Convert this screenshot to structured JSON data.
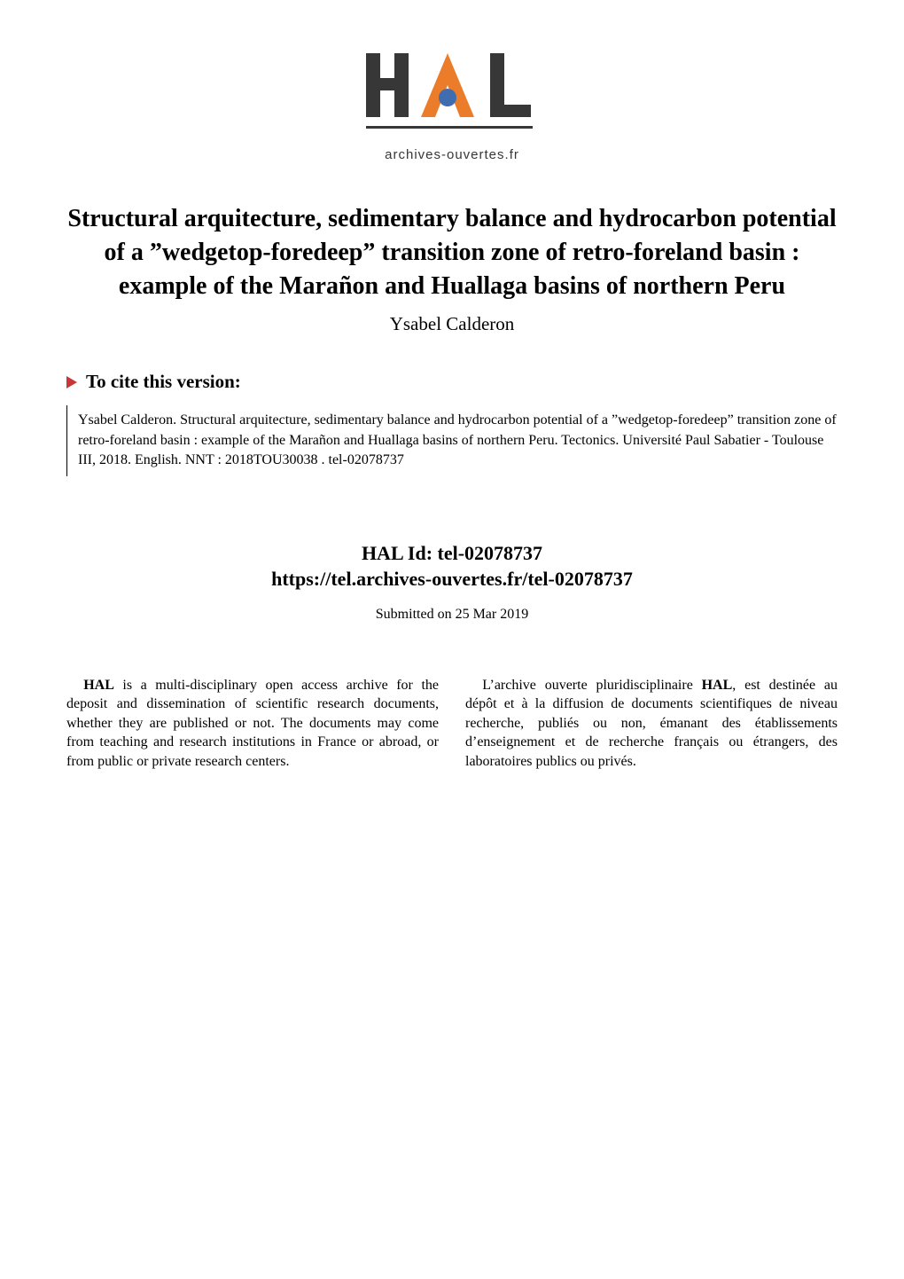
{
  "logo": {
    "text_main": "HAL",
    "caption": "archives-ouvertes.fr",
    "orange": "#eb7c2a",
    "blue": "#3f6db0",
    "dark": "#373737"
  },
  "title": "Structural arquitecture, sedimentary balance and hydrocarbon potential of a ”wedgetop-foredeep” transition zone of retro-foreland basin : example of the Marañon and Huallaga basins of northern Peru",
  "author": "Ysabel Calderon",
  "cite_heading": "To cite this version:",
  "citation": "Ysabel Calderon. Structural arquitecture, sedimentary balance and hydrocarbon potential of a ”wedgetop-foredeep” transition zone of retro-foreland basin : example of the Marañon and Huallaga basins of northern Peru. Tectonics. Université Paul Sabatier - Toulouse III, 2018. English. NNT : 2018TOU30038 . tel-02078737",
  "hal_id_label": "HAL Id: ",
  "hal_id": "tel-02078737",
  "hal_url": "https://tel.archives-ouvertes.fr/tel-02078737",
  "submitted": "Submitted on 25 Mar 2019",
  "col_left": "HAL is a multi-disciplinary open access archive for the deposit and dissemination of scientific research documents, whether they are published or not. The documents may come from teaching and research institutions in France or abroad, or from public or private research centers.",
  "col_right": "L’archive ouverte pluridisciplinaire HAL, est destinée au dépôt et à la diffusion de documents scientifiques de niveau recherche, publiés ou non, émanant des établissements d’enseignement et de recherche français ou étrangers, des laboratoires publics ou privés.",
  "triangle_color": "#c83737"
}
